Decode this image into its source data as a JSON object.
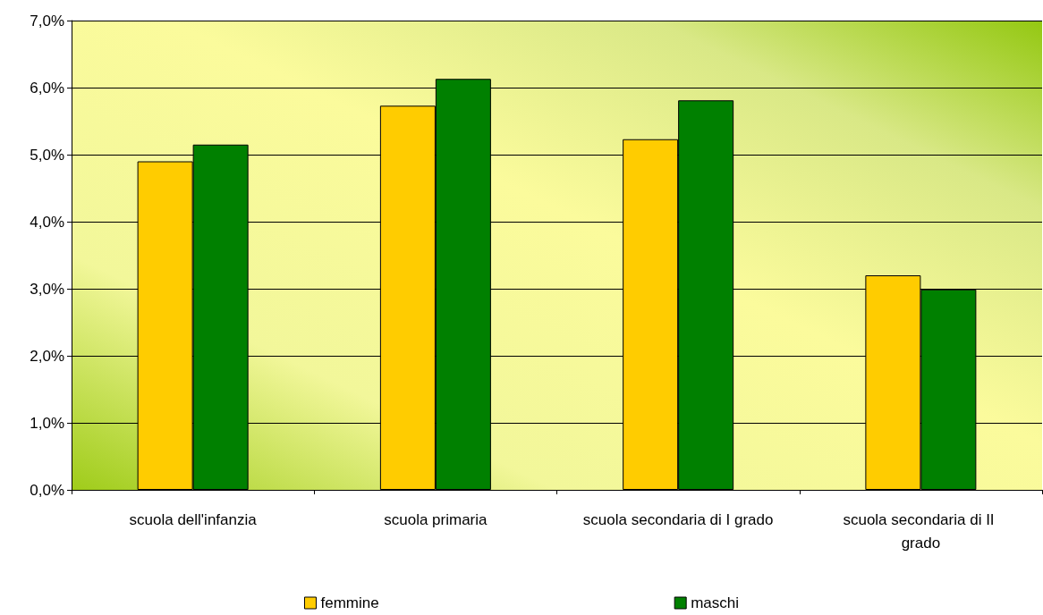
{
  "chart_data": {
    "type": "bar",
    "categories": [
      "scuola dell'infanzia",
      "scuola primaria",
      "scuola secondaria di I grado",
      "scuola secondaria di II grado"
    ],
    "series": [
      {
        "name": "femmine",
        "color": "#ffcc00",
        "values": [
          4.9,
          5.73,
          5.23,
          3.2
        ]
      },
      {
        "name": "maschi",
        "color": "#008000",
        "values": [
          5.15,
          6.13,
          5.81,
          2.99
        ]
      }
    ],
    "ylim": [
      0,
      7
    ],
    "yticks": [
      {
        "value": 0,
        "label": "0,0%"
      },
      {
        "value": 1,
        "label": "1,0%"
      },
      {
        "value": 2,
        "label": "2,0%"
      },
      {
        "value": 3,
        "label": "3,0%"
      },
      {
        "value": 4,
        "label": "4,0%"
      },
      {
        "value": 5,
        "label": "5,0%"
      },
      {
        "value": 6,
        "label": "6,0%"
      },
      {
        "value": 7,
        "label": "7,0%"
      }
    ],
    "grid": "y",
    "legend": "bottom"
  }
}
